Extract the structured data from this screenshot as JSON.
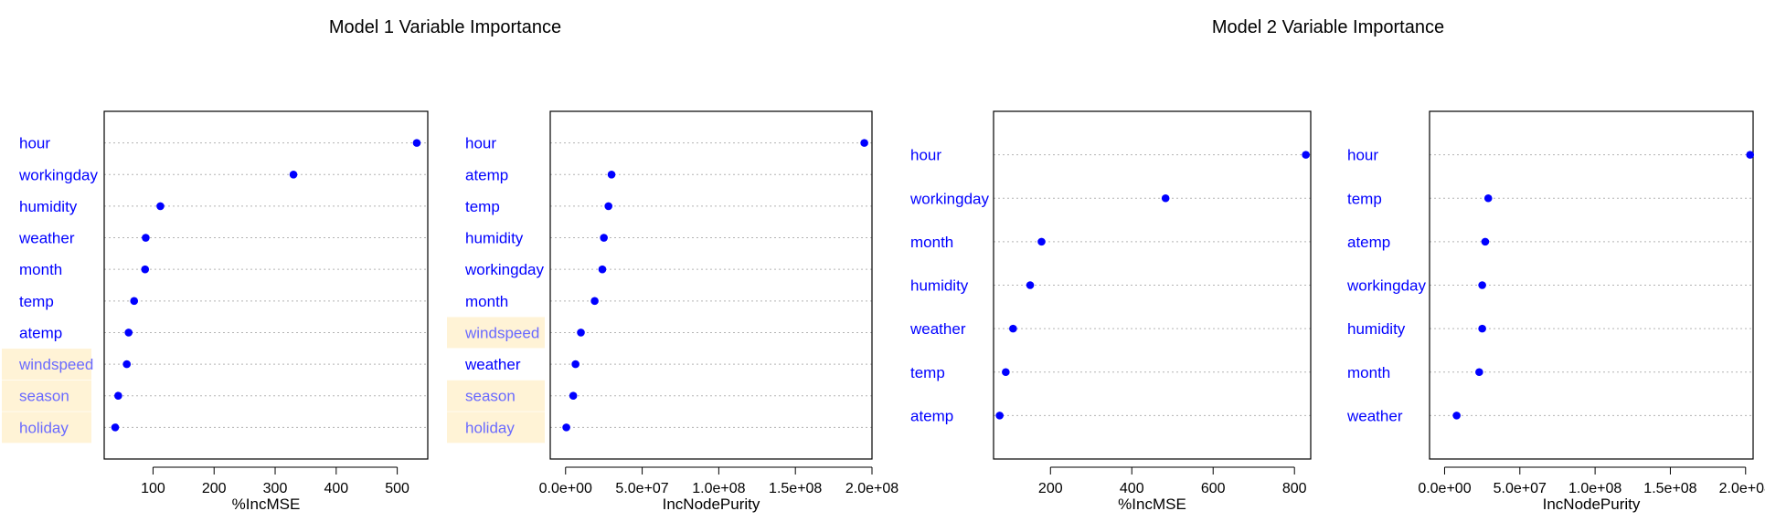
{
  "colors": {
    "point": "#0000ff",
    "label": "#0000ff",
    "highlight_bg": "#fff3d6",
    "highlight_text": "#6a6aff",
    "grid": "#b3b3b3"
  },
  "titles": [
    "Model 1 Variable Importance",
    "Model 2 Variable Importance"
  ],
  "chart_data": [
    {
      "type": "scatter",
      "title": "Model 1 Variable Importance",
      "xlabel": "%IncMSE",
      "grid": true,
      "xlim": [
        20,
        550
      ],
      "xticks": [
        100,
        200,
        300,
        400,
        500
      ],
      "tick_labels": [
        "100",
        "200",
        "300",
        "400",
        "500"
      ],
      "categories": [
        "hour",
        "workingday",
        "humidity",
        "weather",
        "month",
        "temp",
        "atemp",
        "windspeed",
        "season",
        "holiday"
      ],
      "values": [
        532,
        330,
        112,
        88,
        87,
        69,
        60,
        57,
        43,
        38
      ],
      "highlighted": [
        "windspeed",
        "season",
        "holiday"
      ]
    },
    {
      "type": "scatter",
      "title": "",
      "xlabel": "IncNodePurity",
      "grid": true,
      "xlim": [
        -10000000.0,
        200000000.0
      ],
      "xticks": [
        0,
        50000000,
        100000000,
        150000000,
        200000000
      ],
      "tick_labels": [
        "0.0e+00",
        "5.0e+07",
        "1.0e+08",
        "1.5e+08",
        "2.0e+08"
      ],
      "categories": [
        "hour",
        "atemp",
        "temp",
        "humidity",
        "workingday",
        "month",
        "windspeed",
        "weather",
        "season",
        "holiday"
      ],
      "values": [
        195000000,
        30000000,
        28000000,
        25000000,
        24000000,
        19000000,
        10000000,
        6500000,
        5000000,
        500000
      ],
      "highlighted": [
        "windspeed",
        "season",
        "holiday"
      ]
    },
    {
      "type": "scatter",
      "title": "Model 2 Variable Importance",
      "xlabel": "%IncMSE",
      "grid": true,
      "xlim": [
        60,
        840
      ],
      "xticks": [
        200,
        400,
        600,
        800
      ],
      "tick_labels": [
        "200",
        "400",
        "600",
        "800"
      ],
      "categories": [
        "hour",
        "workingday",
        "month",
        "humidity",
        "weather",
        "temp",
        "atemp"
      ],
      "values": [
        828,
        483,
        178,
        150,
        108,
        90,
        75
      ],
      "highlighted": []
    },
    {
      "type": "scatter",
      "title": "",
      "xlabel": "IncNodePurity",
      "grid": true,
      "xlim": [
        -10000000.0,
        205000000.0
      ],
      "xticks": [
        0,
        50000000,
        100000000,
        150000000,
        200000000
      ],
      "tick_labels": [
        "0.0e+00",
        "5.0e+07",
        "1.0e+08",
        "1.5e+08",
        "2.0e+08"
      ],
      "categories": [
        "hour",
        "temp",
        "atemp",
        "workingday",
        "humidity",
        "month",
        "weather"
      ],
      "values": [
        203000000,
        29000000,
        27000000,
        25000000,
        25000000,
        23000000,
        8000000
      ],
      "highlighted": []
    }
  ]
}
